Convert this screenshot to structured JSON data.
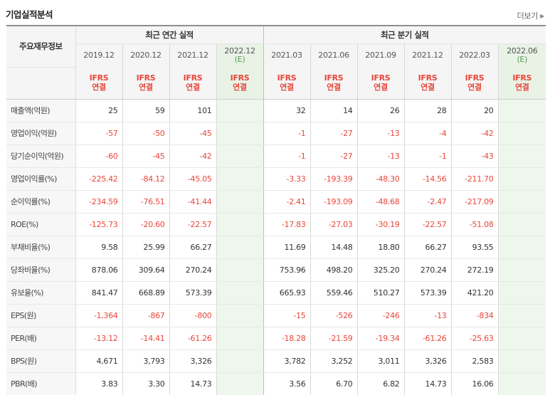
{
  "header": {
    "title": "기업실적분석",
    "more_label": "더보기"
  },
  "table": {
    "corner_label": "주요재무정보",
    "groups": {
      "annual": "최근 연간 실적",
      "quarterly": "최근 분기 실적"
    },
    "periods": [
      "2019.12",
      "2020.12",
      "2021.12",
      "2022.12",
      "2021.03",
      "2021.06",
      "2021.09",
      "2021.12",
      "2022.03",
      "2022.06"
    ],
    "estimate_mark": "(E)",
    "basis_top": "IFRS",
    "basis_bottom": "연결",
    "rows": [
      {
        "label": "매출액(억원)",
        "values": [
          "25",
          "59",
          "101",
          "",
          "32",
          "14",
          "26",
          "28",
          "20",
          ""
        ]
      },
      {
        "label": "영업이익(억원)",
        "values": [
          "-57",
          "-50",
          "-45",
          "",
          "-1",
          "-27",
          "-13",
          "-4",
          "-42",
          ""
        ]
      },
      {
        "label": "당기순이익(억원)",
        "values": [
          "-60",
          "-45",
          "-42",
          "",
          "-1",
          "-27",
          "-13",
          "-1",
          "-43",
          ""
        ]
      },
      {
        "label": "영업이익률(%)",
        "values": [
          "-225.42",
          "-84.12",
          "-45.05",
          "",
          "-3.33",
          "-193.39",
          "-48.30",
          "-14.56",
          "-211.70",
          ""
        ]
      },
      {
        "label": "순이익률(%)",
        "values": [
          "-234.59",
          "-76.51",
          "-41.44",
          "",
          "-2.41",
          "-193.09",
          "-48.68",
          "-2.47",
          "-217.09",
          ""
        ]
      },
      {
        "label": "ROE(%)",
        "values": [
          "-125.73",
          "-20.60",
          "-22.57",
          "",
          "-17.83",
          "-27.03",
          "-30.19",
          "-22.57",
          "-51.08",
          ""
        ]
      },
      {
        "label": "부채비율(%)",
        "values": [
          "9.58",
          "25.99",
          "66.27",
          "",
          "11.69",
          "14.48",
          "18.80",
          "66.27",
          "93.55",
          ""
        ]
      },
      {
        "label": "당좌비율(%)",
        "values": [
          "878.06",
          "309.64",
          "270.24",
          "",
          "753.96",
          "498.20",
          "325.20",
          "270.24",
          "272.19",
          ""
        ]
      },
      {
        "label": "유보율(%)",
        "values": [
          "841.47",
          "668.89",
          "573.39",
          "",
          "665.93",
          "559.46",
          "510.27",
          "573.39",
          "421.20",
          ""
        ]
      },
      {
        "label": "EPS(원)",
        "values": [
          "-1,364",
          "-867",
          "-800",
          "",
          "-15",
          "-526",
          "-246",
          "-13",
          "-834",
          ""
        ]
      },
      {
        "label": "PER(배)",
        "values": [
          "-13.12",
          "-14.41",
          "-61.26",
          "",
          "-18.28",
          "-21.59",
          "-19.34",
          "-61.26",
          "-25.63",
          ""
        ]
      },
      {
        "label": "BPS(원)",
        "values": [
          "4,671",
          "3,793",
          "3,326",
          "",
          "3,782",
          "3,252",
          "3,011",
          "3,326",
          "2,583",
          ""
        ]
      },
      {
        "label": "PBR(배)",
        "values": [
          "3.83",
          "3.30",
          "14.73",
          "",
          "3.56",
          "6.70",
          "6.82",
          "14.73",
          "16.06",
          ""
        ]
      }
    ]
  }
}
